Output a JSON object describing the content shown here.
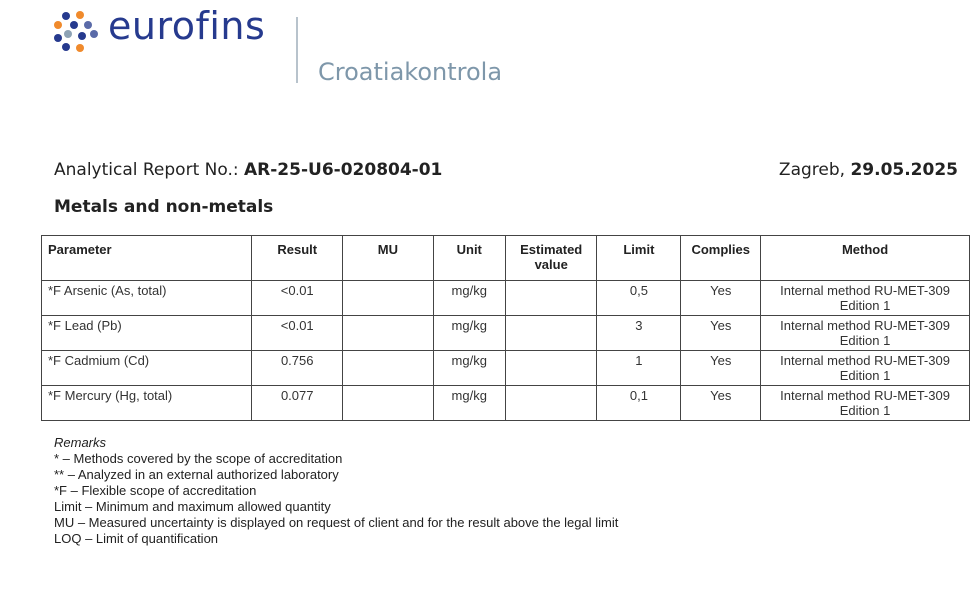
{
  "header": {
    "logo_text": "eurofins",
    "sub_brand": "Croatiakontrola",
    "colors": {
      "brand_blue": "#263a8e",
      "brand_orange": "#f08a2c",
      "sub_brand": "#7e97aa"
    }
  },
  "report": {
    "label": "Analytical Report No.:",
    "number": "AR-25-U6-020804-01",
    "city": "Zagreb,",
    "date": "29.05.2025"
  },
  "section_title": "Metals and non-metals",
  "table": {
    "headers": [
      "Parameter",
      "Result",
      "MU",
      "Unit",
      "Estimated value",
      "Limit",
      "Complies",
      "Method"
    ],
    "rows": [
      {
        "parameter": "*F Arsenic (As, total)",
        "result": "<0.01",
        "mu": "",
        "unit": "mg/kg",
        "estimated": "",
        "limit": "0,5",
        "complies": "Yes",
        "method_line1": "Internal method RU-MET-309",
        "method_line2": "Edition 1"
      },
      {
        "parameter": "*F Lead (Pb)",
        "result": "<0.01",
        "mu": "",
        "unit": "mg/kg",
        "estimated": "",
        "limit": "3",
        "complies": "Yes",
        "method_line1": "Internal method RU-MET-309",
        "method_line2": "Edition 1"
      },
      {
        "parameter": "*F Cadmium (Cd)",
        "result": "0.756",
        "mu": "",
        "unit": "mg/kg",
        "estimated": "",
        "limit": "1",
        "complies": "Yes",
        "method_line1": "Internal method RU-MET-309",
        "method_line2": "Edition 1"
      },
      {
        "parameter": "*F Mercury (Hg, total)",
        "result": "0.077",
        "mu": "",
        "unit": "mg/kg",
        "estimated": "",
        "limit": "0,1",
        "complies": "Yes",
        "method_line1": "Internal method RU-MET-309",
        "method_line2": "Edition 1"
      }
    ]
  },
  "remarks": {
    "title": "Remarks",
    "lines": [
      "* – Methods covered by the scope of accreditation",
      "** – Analyzed in an external authorized laboratory",
      "*F – Flexible scope of accreditation",
      "Limit – Minimum and maximum allowed quantity",
      "MU – Measured uncertainty is displayed on request of client and for the result above the legal limit",
      "LOQ – Limit of quantification"
    ]
  }
}
